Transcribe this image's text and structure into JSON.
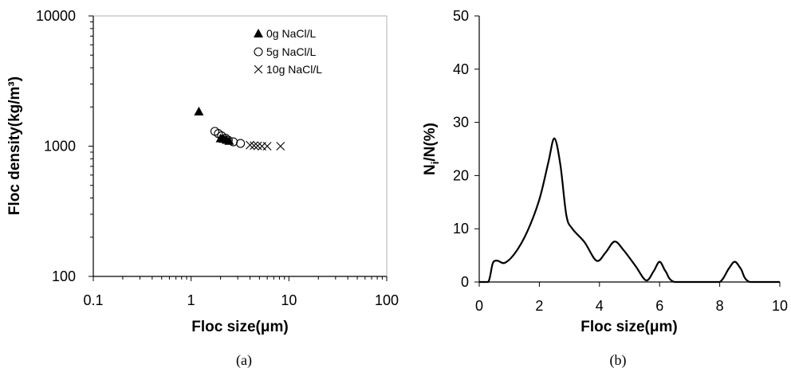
{
  "chart_data": [
    {
      "id": "a",
      "caption": "(a)",
      "type": "scatter",
      "xlabel": "Floc size(μm)",
      "ylabel": "Floc density(kg/m³)",
      "xscale": "log",
      "yscale": "log",
      "xlim": [
        0.1,
        100
      ],
      "ylim": [
        100,
        10000
      ],
      "xticks": [
        "0.1",
        "1",
        "10",
        "100"
      ],
      "yticks": [
        "100",
        "1000",
        "10000"
      ],
      "grid": false,
      "legend_position": "top-right",
      "series": [
        {
          "name": "0g NaCl/L",
          "marker": "filled-triangle",
          "points": [
            [
              1.2,
              1850
            ],
            [
              2.0,
              1150
            ],
            [
              2.15,
              1140
            ],
            [
              2.3,
              1120
            ],
            [
              2.45,
              1100
            ]
          ]
        },
        {
          "name": "5g NaCl/L",
          "marker": "open-circle",
          "points": [
            [
              1.75,
              1300
            ],
            [
              1.9,
              1250
            ],
            [
              2.05,
              1200
            ],
            [
              2.25,
              1150
            ],
            [
              2.4,
              1110
            ],
            [
              2.7,
              1080
            ],
            [
              3.2,
              1050
            ]
          ]
        },
        {
          "name": "10g NaCl/L",
          "marker": "cross",
          "points": [
            [
              4.0,
              1020
            ],
            [
              4.4,
              1010
            ],
            [
              4.8,
              1005
            ],
            [
              5.3,
              1000
            ],
            [
              6.0,
              1000
            ],
            [
              8.2,
              1000
            ]
          ]
        }
      ]
    },
    {
      "id": "b",
      "caption": "(b)",
      "type": "line",
      "xlabel": "Floc size(μm)",
      "ylabel_main": "N",
      "ylabel_sub": "i",
      "ylabel_rest": "/N(%)",
      "xlim": [
        0,
        10
      ],
      "ylim": [
        0,
        50
      ],
      "xticks": [
        "0",
        "2",
        "4",
        "6",
        "8",
        "10"
      ],
      "yticks": [
        "0",
        "10",
        "20",
        "30",
        "40",
        "50"
      ],
      "grid": false,
      "series": [
        {
          "points": [
            [
              0.0,
              0
            ],
            [
              0.3,
              0
            ],
            [
              0.45,
              3.5
            ],
            [
              0.6,
              4.0
            ],
            [
              0.85,
              3.6
            ],
            [
              1.2,
              5.5
            ],
            [
              1.6,
              9.5
            ],
            [
              2.0,
              15.5
            ],
            [
              2.3,
              22.5
            ],
            [
              2.5,
              27.0
            ],
            [
              2.7,
              22.0
            ],
            [
              2.9,
              12.5
            ],
            [
              3.1,
              10.0
            ],
            [
              3.5,
              7.5
            ],
            [
              3.9,
              4.0
            ],
            [
              4.2,
              5.5
            ],
            [
              4.5,
              7.6
            ],
            [
              4.8,
              6.0
            ],
            [
              5.2,
              3.0
            ],
            [
              5.55,
              0.3
            ],
            [
              5.8,
              2.0
            ],
            [
              6.0,
              3.8
            ],
            [
              6.2,
              2.0
            ],
            [
              6.5,
              0
            ],
            [
              7.5,
              0
            ],
            [
              8.0,
              0
            ],
            [
              8.3,
              2.5
            ],
            [
              8.5,
              3.8
            ],
            [
              8.7,
              2.5
            ],
            [
              9.0,
              0
            ],
            [
              10.0,
              0
            ]
          ]
        }
      ]
    }
  ]
}
